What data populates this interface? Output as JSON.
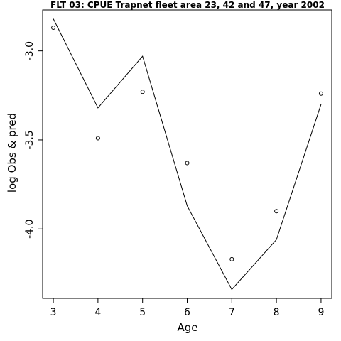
{
  "chart_data": {
    "type": "line",
    "title": "FLT 03: CPUE Trapnet fleet area 23, 42 and 47, year 2002",
    "xlabel": "Age",
    "ylabel": "log Obs & pred",
    "x": [
      3,
      4,
      5,
      6,
      7,
      8,
      9
    ],
    "xticks": [
      "3",
      "4",
      "5",
      "6",
      "7",
      "8",
      "9"
    ],
    "yticks": [
      -3.0,
      -3.5,
      -4.0
    ],
    "ytick_labels": [
      "-3.0",
      "-3.5",
      "-4.0"
    ],
    "xlim": [
      2.76,
      9.24
    ],
    "ylim": [
      -4.39,
      -2.77
    ],
    "series": [
      {
        "style": "line",
        "values": [
          -2.82,
          -3.32,
          -3.03,
          -3.87,
          -4.34,
          -4.06,
          -3.3
        ]
      },
      {
        "style": "points",
        "values": [
          -2.87,
          -3.49,
          -3.23,
          -3.63,
          -4.17,
          -3.9,
          -3.24
        ]
      }
    ],
    "grid": false,
    "legend": "none",
    "colors": {
      "line": "#000000",
      "points": "#000000",
      "background": "#ffffff"
    }
  }
}
